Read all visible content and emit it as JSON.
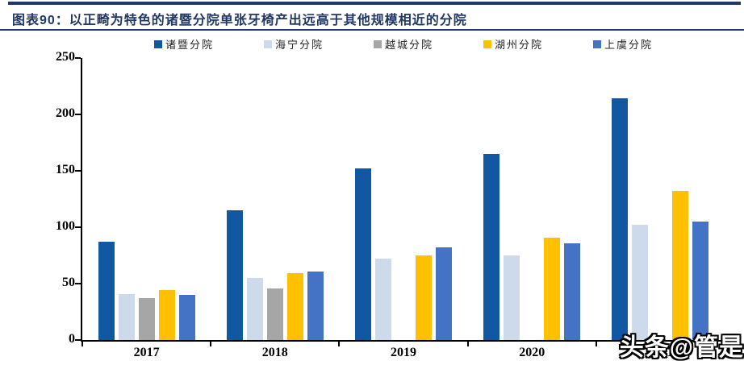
{
  "header": {
    "title": "图表90：以正畸为特色的诸暨分院单张牙椅产出远高于其他规模相近的分院"
  },
  "watermark": "头条@管是",
  "colors": {
    "accent_navy": "#1F3864",
    "axis": "#000000"
  },
  "chart_data": {
    "type": "bar",
    "title": "以正畸为特色的诸暨分院单张牙椅产出远高于其他规模相近的分院",
    "categories": [
      "2017",
      "2018",
      "2019",
      "2020",
      "2021"
    ],
    "series": [
      {
        "name": "诸暨分院",
        "color": "#1257A2",
        "values": [
          87,
          115,
          152,
          165,
          214
        ]
      },
      {
        "name": "海宁分院",
        "color": "#CDDAEB",
        "values": [
          41,
          55,
          72,
          75,
          102
        ]
      },
      {
        "name": "越城分院",
        "color": "#A6A6A6",
        "values": [
          37,
          46,
          null,
          null,
          null
        ]
      },
      {
        "name": "湖州分院",
        "color": "#FFC000",
        "values": [
          44,
          59,
          75,
          91,
          132
        ]
      },
      {
        "name": "上虞分院",
        "color": "#4472C4",
        "values": [
          40,
          61,
          82,
          86,
          105
        ]
      }
    ],
    "xlabel": "",
    "ylabel": "",
    "ylim": [
      0,
      250
    ],
    "yticks": [
      0,
      50,
      100,
      150,
      200,
      250
    ],
    "legend_position": "top",
    "grid": false
  }
}
